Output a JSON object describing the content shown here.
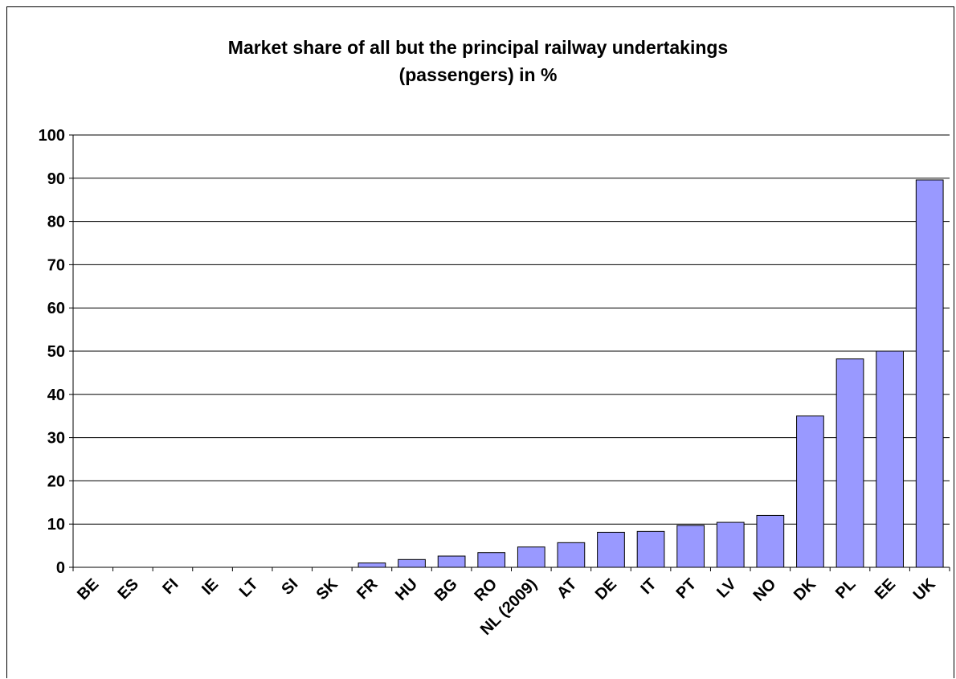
{
  "chart_data": {
    "type": "bar",
    "title_lines": [
      "Market share of all but the principal railway undertakings",
      "(passengers) in %"
    ],
    "categories": [
      "BE",
      "ES",
      "FI",
      "IE",
      "LT",
      "SI",
      "SK",
      "FR",
      "HU",
      "BG",
      "RO",
      "NL (2009)",
      "AT",
      "DE",
      "IT",
      "PT",
      "LV",
      "NO",
      "DK",
      "PL",
      "EE",
      "UK"
    ],
    "values": [
      0,
      0,
      0,
      0,
      0,
      0,
      0,
      1,
      1.8,
      2.6,
      3.4,
      4.7,
      5.7,
      8.1,
      8.3,
      9.7,
      10.4,
      12,
      35,
      48.2,
      50,
      89.6
    ],
    "ylim": [
      0,
      100
    ],
    "yticks": [
      0,
      10,
      20,
      30,
      40,
      50,
      60,
      70,
      80,
      90,
      100
    ],
    "grid": true,
    "legend": "none",
    "colors": {
      "bar_fill": "#9999ff",
      "bar_stroke": "#000000",
      "grid": "#000000"
    }
  }
}
